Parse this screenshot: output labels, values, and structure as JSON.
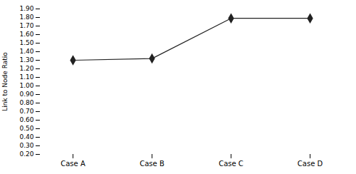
{
  "chart_data": {
    "type": "line",
    "categories": [
      "Case A",
      "Case B",
      "Case C",
      "Case D"
    ],
    "values": [
      1.3,
      1.32,
      1.79,
      1.79
    ],
    "ylabel": "Link to Node Ratio",
    "color": "#222222",
    "marker": "diamond",
    "ylim": [
      0.2,
      1.9
    ],
    "yticks": [
      {
        "value": 0.2,
        "label": "0.20"
      },
      {
        "value": 0.3,
        "label": "0.30"
      },
      {
        "value": 0.4,
        "label": "0.40"
      },
      {
        "value": 0.5,
        "label": "0.50"
      },
      {
        "value": 0.6,
        "label": "0.60"
      },
      {
        "value": 0.7,
        "label": "0.70"
      },
      {
        "value": 0.8,
        "label": "0.80"
      },
      {
        "value": 0.9,
        "label": "0.90"
      },
      {
        "value": 1.0,
        "label": "1.00"
      },
      {
        "value": 1.1,
        "label": "1.10"
      },
      {
        "value": 1.2,
        "label": "1.20"
      },
      {
        "value": 1.3,
        "label": "1.30"
      },
      {
        "value": 1.4,
        "label": "1.40"
      },
      {
        "value": 1.5,
        "label": "1.50"
      },
      {
        "value": 1.6,
        "label": "1.60"
      },
      {
        "value": 1.7,
        "label": "1.70"
      },
      {
        "value": 1.8,
        "label": "1.80"
      },
      {
        "value": 1.9,
        "label": "1.90"
      }
    ],
    "grid": false
  }
}
